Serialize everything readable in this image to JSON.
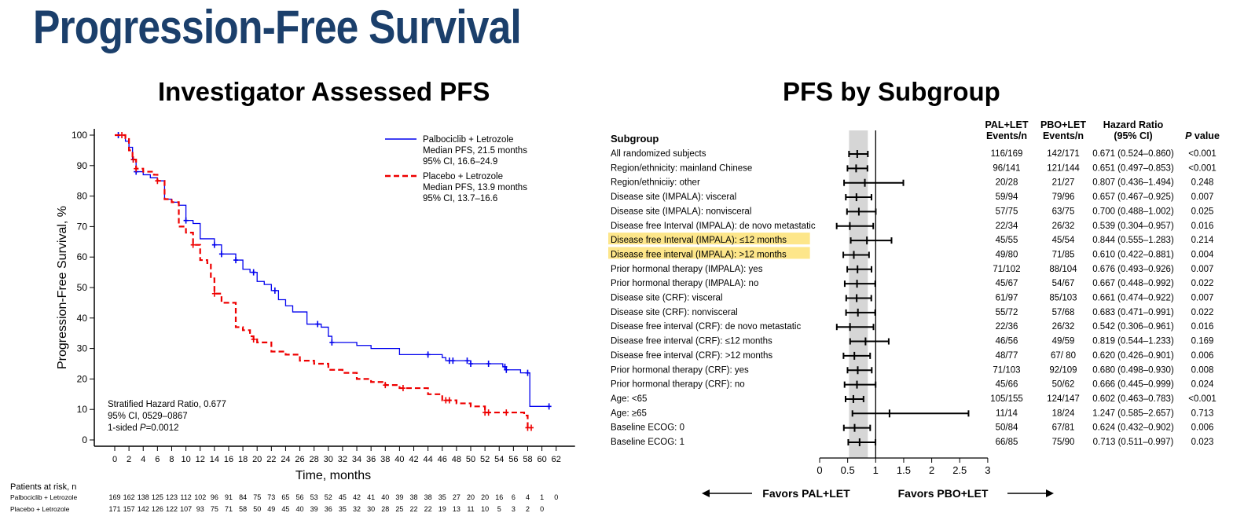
{
  "title": "Progression-Free Survival",
  "chart_data": [
    {
      "type": "line",
      "title": "Investigator Assessed PFS",
      "xlabel": "Time, months",
      "ylabel": "Progression-Free Survival, %",
      "xlim": [
        0,
        62
      ],
      "ylim": [
        0,
        100
      ],
      "xticks": [
        0,
        2,
        4,
        6,
        8,
        10,
        12,
        14,
        16,
        18,
        20,
        22,
        24,
        26,
        28,
        30,
        32,
        34,
        36,
        38,
        40,
        42,
        44,
        46,
        48,
        50,
        52,
        54,
        56,
        58,
        60,
        62
      ],
      "yticks": [
        0,
        10,
        20,
        30,
        40,
        50,
        60,
        70,
        80,
        90,
        100
      ],
      "grid": false,
      "legend_position": "top-right",
      "series": [
        {
          "name": "Palbociclib + Letrozole",
          "legend_lines": [
            "Median PFS, 21.5 months",
            "95% CI, 16.6–24.9"
          ],
          "color": "#0000ee",
          "style": "solid",
          "x": [
            0,
            1,
            1.5,
            2,
            2.5,
            3,
            3.5,
            4,
            5,
            5.5,
            6,
            7,
            8,
            9,
            10,
            11,
            12,
            13,
            14,
            15,
            16,
            17,
            18,
            19,
            19.5,
            20,
            21,
            22,
            23,
            24,
            24.5,
            25,
            27,
            27.5,
            28,
            29,
            30,
            30.5,
            32,
            34,
            36,
            40,
            46,
            46.5,
            50,
            54,
            54.5,
            55,
            57,
            58,
            58.3,
            60,
            61
          ],
          "y": [
            100,
            100,
            98,
            96,
            92,
            88,
            88,
            87,
            86,
            86,
            85,
            79,
            78,
            77,
            72,
            71,
            66,
            66,
            64,
            61,
            61,
            59,
            56,
            55,
            55,
            52,
            51,
            49,
            46,
            44,
            44,
            42,
            38,
            38,
            38,
            37,
            34,
            32,
            32,
            31,
            30,
            28,
            27,
            26,
            25,
            25,
            24,
            23,
            22,
            22,
            11,
            11,
            11
          ],
          "censor_x": [
            0.5,
            2.6,
            3,
            10,
            14,
            15,
            17,
            19.5,
            22.5,
            28.5,
            30.5,
            44,
            47,
            47.5,
            49.5,
            50,
            52.5,
            54.8,
            55,
            58,
            61
          ]
        },
        {
          "name": "Placebo + Letrozole",
          "legend_lines": [
            "Median PFS, 13.9 months",
            "95% CI, 13.7–16.6"
          ],
          "color": "#ee0000",
          "style": "dashed",
          "x": [
            0,
            1.5,
            2,
            2.5,
            3,
            3.5,
            4,
            5,
            5.5,
            6,
            7,
            8,
            9,
            10,
            11,
            12,
            13,
            13.5,
            14,
            15,
            16,
            17,
            18,
            19,
            19.5,
            20,
            22,
            24,
            26,
            28,
            30,
            32,
            34,
            36,
            38,
            40,
            44,
            46,
            48,
            50,
            52,
            56,
            57.5,
            58
          ],
          "y": [
            100,
            99,
            95,
            92,
            89,
            89,
            88,
            88,
            87,
            85,
            79,
            78,
            70,
            68,
            64,
            59,
            58,
            53,
            48,
            45,
            45,
            37,
            36,
            34,
            33,
            32,
            29,
            28,
            26,
            25,
            23,
            22,
            20,
            19,
            18,
            17,
            15,
            13,
            12,
            11,
            9,
            9,
            8,
            4
          ],
          "censor_x": [
            1,
            2.6,
            3,
            6,
            11,
            14,
            19.5,
            38,
            40.5,
            46.5,
            47,
            52,
            52.5,
            55,
            58,
            58.5
          ]
        }
      ],
      "annotation_lines": [
        "Stratified Hazard Ratio, 0.677",
        "95% CI, 0529–0867"
      ],
      "annotation_p": {
        "prefix": "1-sided ",
        "p": "P",
        "rest": "=0.0012"
      },
      "at_risk": {
        "header": "Patients at risk, n",
        "rows": [
          {
            "label": "Palbociclib + Letrozole",
            "values": [
              "169",
              "162",
              "138",
              "125",
              "123",
              "112",
              "102",
              "96",
              "91",
              "84",
              "75",
              "73",
              "65",
              "56",
              "53",
              "52",
              "45",
              "42",
              "41",
              "40",
              "39",
              "38",
              "38",
              "35",
              "27",
              "20",
              "20",
              "16",
              "6",
              "4",
              "1",
              "0"
            ]
          },
          {
            "label": "Placebo + Letrozole",
            "values": [
              "171",
              "157",
              "142",
              "126",
              "122",
              "107",
              "93",
              "75",
              "71",
              "58",
              "50",
              "49",
              "45",
              "40",
              "39",
              "36",
              "35",
              "32",
              "30",
              "28",
              "25",
              "22",
              "22",
              "19",
              "13",
              "11",
              "10",
              "5",
              "3",
              "2",
              "0",
              ""
            ]
          }
        ]
      }
    },
    {
      "type": "forest",
      "title": "PFS by Subgroup",
      "columns": {
        "subgroup": "Subgroup",
        "pal": [
          "PAL+LET",
          "Events/n"
        ],
        "pbo": [
          "PBO+LET",
          "Events/n"
        ],
        "hr": [
          "Hazard Ratio",
          "(95% CI)"
        ],
        "p_italic": "P",
        "p_rest": " value"
      },
      "xlim": [
        0,
        3
      ],
      "xticks": [
        "0",
        "0.5",
        "1",
        "1.5",
        "2",
        "2.5",
        "3"
      ],
      "reference_line": 1,
      "shaded_band": [
        0.524,
        0.86
      ],
      "favors_left": "Favors PAL+LET",
      "favors_right": "Favors PBO+LET",
      "highlight_color": "#fde68a",
      "rows": [
        {
          "label": "All randomized subjects",
          "pal": "116/169",
          "pbo": "142/171",
          "hr_text": "0.671 (0.524–0.860)",
          "p": "<0.001",
          "hr": 0.671,
          "lo": 0.524,
          "hi": 0.86,
          "highlight": false
        },
        {
          "label": "Region/ethnicity: mainland Chinese",
          "pal": "96/141",
          "pbo": "121/144",
          "hr_text": "0.651 (0.497–0.853)",
          "p": "<0.001",
          "hr": 0.651,
          "lo": 0.497,
          "hi": 0.853,
          "highlight": false
        },
        {
          "label": "Region/ethniciiy: other",
          "pal": "20/28",
          "pbo": "21/27",
          "hr_text": "0.807 (0.436–1.494)",
          "p": "0.248",
          "hr": 0.807,
          "lo": 0.436,
          "hi": 1.494,
          "highlight": false
        },
        {
          "label": "Disease site (IMPALA): visceral",
          "pal": "59/94",
          "pbo": "79/96",
          "hr_text": "0.657 (0.467–0.925)",
          "p": "0.007",
          "hr": 0.657,
          "lo": 0.467,
          "hi": 0.925,
          "highlight": false
        },
        {
          "label": "Disease site (IMPALA): nonvisceral",
          "pal": "57/75",
          "pbo": "63/75",
          "hr_text": "0.700 (0.488–1.002)",
          "p": "0.025",
          "hr": 0.7,
          "lo": 0.488,
          "hi": 1.002,
          "highlight": false
        },
        {
          "label": "Disease free Interval (IMPALA): de novo metastatic",
          "pal": "22/34",
          "pbo": "26/32",
          "hr_text": "0.539 (0.304–0.957)",
          "p": "0.016",
          "hr": 0.539,
          "lo": 0.304,
          "hi": 0.957,
          "highlight": false
        },
        {
          "label": "Disease free Interval (IMPALA): ≤12 months",
          "pal": "45/55",
          "pbo": "45/54",
          "hr_text": "0.844 (0.555–1.283)",
          "p": "0.214",
          "hr": 0.844,
          "lo": 0.555,
          "hi": 1.283,
          "highlight": true
        },
        {
          "label": "Disease free interval (IMPALA): >12 months",
          "pal": "49/80",
          "pbo": "71/85",
          "hr_text": "0.610 (0.422–0.881)",
          "p": "0.004",
          "hr": 0.61,
          "lo": 0.422,
          "hi": 0.881,
          "highlight": true
        },
        {
          "label": "Prior hormonal therapy (IMPALA): yes",
          "pal": "71/102",
          "pbo": "88/104",
          "hr_text": "0.676 (0.493–0.926)",
          "p": "0.007",
          "hr": 0.676,
          "lo": 0.493,
          "hi": 0.926,
          "highlight": false
        },
        {
          "label": "Prior hormonal therapy (IMPALA): no",
          "pal": "45/67",
          "pbo": "54/67",
          "hr_text": "0.667 (0.448–0.992)",
          "p": "0.022",
          "hr": 0.667,
          "lo": 0.448,
          "hi": 0.992,
          "highlight": false
        },
        {
          "label": "Disease site (CRF): visceral",
          "pal": "61/97",
          "pbo": "85/103",
          "hr_text": "0.661 (0.474–0.922)",
          "p": "0.007",
          "hr": 0.661,
          "lo": 0.474,
          "hi": 0.922,
          "highlight": false
        },
        {
          "label": "Disease site (CRF): nonvisceral",
          "pal": "55/72",
          "pbo": "57/68",
          "hr_text": "0.683 (0.471–0.991)",
          "p": "0.022",
          "hr": 0.683,
          "lo": 0.471,
          "hi": 0.991,
          "highlight": false
        },
        {
          "label": "Disease free interval (CRF): de novo metastatic",
          "pal": "22/36",
          "pbo": "26/32",
          "hr_text": "0.542 (0.306–0.961)",
          "p": "0.016",
          "hr": 0.542,
          "lo": 0.306,
          "hi": 0.961,
          "highlight": false
        },
        {
          "label": "Disease free interval (CRF): ≤12 months",
          "pal": "46/56",
          "pbo": "49/59",
          "hr_text": "0.819 (0.544–1.233)",
          "p": "0.169",
          "hr": 0.819,
          "lo": 0.544,
          "hi": 1.233,
          "highlight": false
        },
        {
          "label": "Disease free interval (CRF): >12 months",
          "pal": "48/77",
          "pbo": "67/ 80",
          "hr_text": "0.620 (0.426–0.901)",
          "p": "0.006",
          "hr": 0.62,
          "lo": 0.426,
          "hi": 0.901,
          "highlight": false
        },
        {
          "label": "Prior hormonal therapy (CRF): yes",
          "pal": "71/103",
          "pbo": "92/109",
          "hr_text": "0.680 (0.498–0.930)",
          "p": "0.008",
          "hr": 0.68,
          "lo": 0.498,
          "hi": 0.93,
          "highlight": false
        },
        {
          "label": "Prior hormonal therapy (CRF): no",
          "pal": "45/66",
          "pbo": "50/62",
          "hr_text": "0.666 (0.445–0.999)",
          "p": "0.024",
          "hr": 0.666,
          "lo": 0.445,
          "hi": 0.999,
          "highlight": false
        },
        {
          "label": "Age: <65",
          "pal": "105/155",
          "pbo": "124/147",
          "hr_text": "0.602 (0.463–0.783)",
          "p": "<0.001",
          "hr": 0.602,
          "lo": 0.463,
          "hi": 0.783,
          "highlight": false
        },
        {
          "label": "Age: ≥65",
          "pal": "11/14",
          "pbo": "18/24",
          "hr_text": "1.247 (0.585–2.657)",
          "p": "0.713",
          "hr": 1.247,
          "lo": 0.585,
          "hi": 2.657,
          "highlight": false
        },
        {
          "label": "Baseline ECOG: 0",
          "pal": "50/84",
          "pbo": "67/81",
          "hr_text": "0.624 (0.432–0.902)",
          "p": "0.006",
          "hr": 0.624,
          "lo": 0.432,
          "hi": 0.902,
          "highlight": false
        },
        {
          "label": "Baseline ECOG: 1",
          "pal": "66/85",
          "pbo": "75/90",
          "hr_text": "0.713 (0.511–0.997)",
          "p": "0.023",
          "hr": 0.713,
          "lo": 0.511,
          "hi": 0.997,
          "highlight": false
        }
      ]
    }
  ]
}
